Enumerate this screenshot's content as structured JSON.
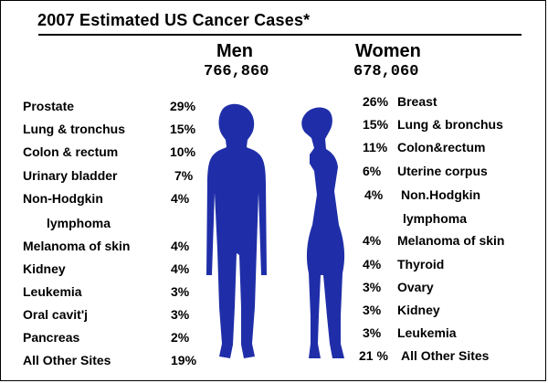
{
  "title": "2007 Estimated US Cancer Cases*",
  "colors": {
    "silhouette": "#1f2ea8",
    "text": "#000000"
  },
  "chart_data": {
    "type": "table",
    "groups": [
      {
        "name": "Men",
        "total": "766,860",
        "rows": [
          {
            "site": "Prostate",
            "pct": "29%",
            "value": 29
          },
          {
            "site": "Lung & tronchus",
            "pct": "15%",
            "value": 15
          },
          {
            "site": "Colon & rectum",
            "pct": "10%",
            "value": 10
          },
          {
            "site": "Urinary bladder",
            "pct": "7%",
            "value": 7
          },
          {
            "site": "Non-Hodgkin",
            "site_line2": "lymphoma",
            "pct": "4%",
            "value": 4
          },
          {
            "site": "Melanoma of skin",
            "pct": "4%",
            "value": 4
          },
          {
            "site": "Kidney",
            "pct": "4%",
            "value": 4
          },
          {
            "site": "Leukemia",
            "pct": "3%",
            "value": 3
          },
          {
            "site": "Oral cavit'j",
            "pct": "3%",
            "value": 3
          },
          {
            "site": "Pancreas",
            "pct": "2%",
            "value": 2
          },
          {
            "site": "All Other Sites",
            "pct": "19%",
            "value": 19
          }
        ]
      },
      {
        "name": "Women",
        "total": "678,060",
        "rows": [
          {
            "pct": "26%",
            "site": "Breast",
            "value": 26
          },
          {
            "pct": "15%",
            "site": "Lung & bronchus",
            "value": 15
          },
          {
            "pct": "11%",
            "site": "Colon&rectum",
            "value": 11
          },
          {
            "pct": "6%",
            "site": "Uterine corpus",
            "value": 6
          },
          {
            "pct": "4%",
            "site": "Non.Hodgkin",
            "site_line2": "lymphoma",
            "value": 4
          },
          {
            "pct": "4%",
            "site": "Melanoma of skin",
            "value": 4
          },
          {
            "pct": "4%",
            "site": "Thyroid",
            "value": 4
          },
          {
            "pct": "3%",
            "site": "Ovary",
            "value": 3
          },
          {
            "pct": "3%",
            "site": "Kidney",
            "value": 3
          },
          {
            "pct": "3%",
            "site": "Leukemia",
            "value": 3
          },
          {
            "pct": "21 %",
            "site": "All Other Sites",
            "value": 21
          }
        ]
      }
    ]
  }
}
